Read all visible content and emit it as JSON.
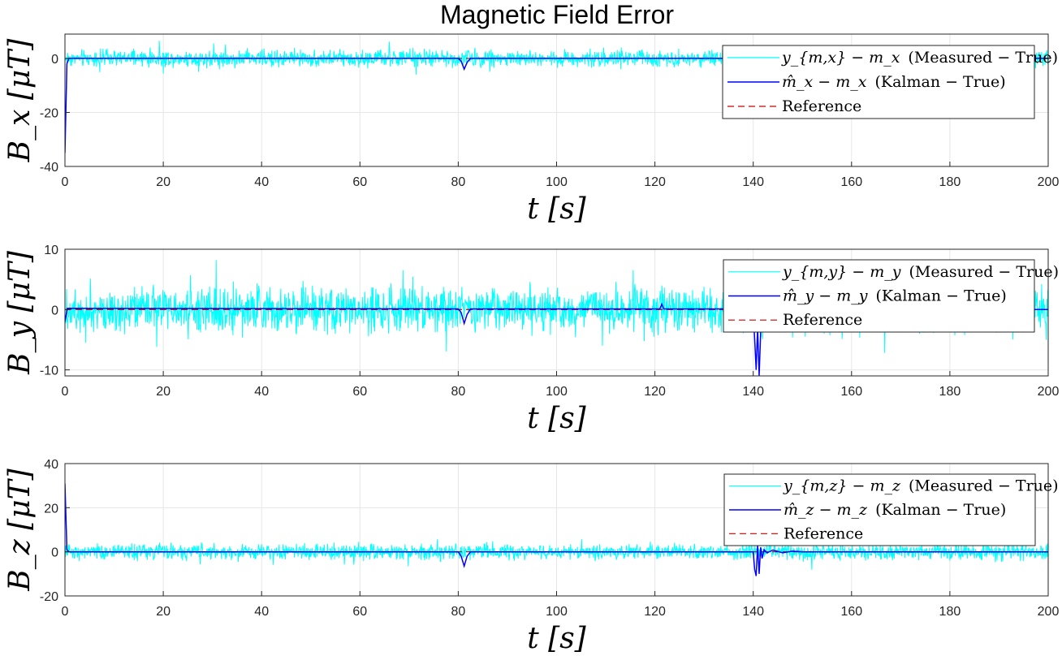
{
  "figure": {
    "title": "Magnetic Field Error"
  },
  "colors": {
    "measured": "#00ffff",
    "kalman": "#0000ff",
    "reference": "#cc0000",
    "grid": "#e6e6e6",
    "axis": "#262626"
  },
  "chart_data": [
    {
      "type": "line",
      "title": "Magnetic Field Error",
      "xlabel": "t [s]",
      "ylabel": "B_x [μT]",
      "xlim": [
        0,
        200
      ],
      "ylim": [
        -40,
        9
      ],
      "xticks": [
        "0",
        "20",
        "40",
        "60",
        "80",
        "100",
        "120",
        "140",
        "160",
        "180",
        "200"
      ],
      "yticks": [
        "-40",
        "-20",
        "0"
      ],
      "ytick_values": [
        -40,
        -20,
        0
      ],
      "grid": true,
      "legend_position": "top-right",
      "series": [
        {
          "name": "y_{m,x} − m_x (Measured − True)",
          "legend_math": "y_{m,x} − m_x",
          "legend_text": "(Measured − True)",
          "noise_amplitude": 4.5,
          "mean": 0
        },
        {
          "name": "m̂_x − m_x (Kalman − True)",
          "legend_math": "m̂_x − m_x",
          "legend_text": "(Kalman − True)",
          "points": [
            [
              0,
              -35
            ],
            [
              0.4,
              -2
            ],
            [
              0.8,
              0
            ],
            [
              80,
              0
            ],
            [
              80.6,
              -1
            ],
            [
              81.2,
              -4
            ],
            [
              81.8,
              -1.5
            ],
            [
              82.5,
              0
            ],
            [
              200,
              0
            ]
          ]
        },
        {
          "name": "Reference",
          "legend_text": "Reference",
          "points": [
            [
              0,
              0
            ],
            [
              200,
              0
            ]
          ]
        }
      ]
    },
    {
      "type": "line",
      "xlabel": "t [s]",
      "ylabel": "B_y [μT]",
      "xlim": [
        0,
        200
      ],
      "ylim": [
        -11,
        10
      ],
      "xticks": [
        "0",
        "20",
        "40",
        "60",
        "80",
        "100",
        "120",
        "140",
        "160",
        "180",
        "200"
      ],
      "yticks": [
        "-10",
        "0",
        "10"
      ],
      "ytick_values": [
        -10,
        0,
        10
      ],
      "grid": true,
      "legend_position": "top-right",
      "series": [
        {
          "name": "y_{m,y} − m_y (Measured − True)",
          "legend_math": "y_{m,y} − m_y",
          "legend_text": "(Measured − True)",
          "noise_amplitude": 5.5,
          "mean": 0
        },
        {
          "name": "m̂_y − m_y (Kalman − True)",
          "legend_math": "m̂_y − m_y",
          "legend_text": "(Kalman − True)",
          "points": [
            [
              0,
              -2
            ],
            [
              0.5,
              0.2
            ],
            [
              80,
              0.1
            ],
            [
              80.6,
              -0.5
            ],
            [
              81.2,
              -2.3
            ],
            [
              81.8,
              -0.8
            ],
            [
              82.5,
              0.1
            ],
            [
              121,
              0.1
            ],
            [
              121.4,
              0.9
            ],
            [
              121.8,
              0.1
            ],
            [
              140,
              0.1
            ],
            [
              140.3,
              -5
            ],
            [
              140.6,
              -10
            ],
            [
              140.9,
              -3
            ],
            [
              141.2,
              -11
            ],
            [
              141.5,
              -4
            ],
            [
              141.8,
              0
            ],
            [
              200,
              0
            ]
          ]
        },
        {
          "name": "Reference",
          "legend_text": "Reference",
          "points": [
            [
              0,
              0
            ],
            [
              200,
              0
            ]
          ]
        }
      ]
    },
    {
      "type": "line",
      "xlabel": "t [s]",
      "ylabel": "B_z [μT]",
      "xlim": [
        0,
        200
      ],
      "ylim": [
        -20,
        40
      ],
      "xticks": [
        "0",
        "20",
        "40",
        "60",
        "80",
        "100",
        "120",
        "140",
        "160",
        "180",
        "200"
      ],
      "yticks": [
        "-20",
        "0",
        "20",
        "40"
      ],
      "ytick_values": [
        -20,
        0,
        20,
        40
      ],
      "grid": true,
      "legend_position": "top-right",
      "series": [
        {
          "name": "y_{m,z} − m_z (Measured − True)",
          "legend_math": "y_{m,z} − m_z",
          "legend_text": "(Measured − True)",
          "noise_amplitude": 5,
          "mean": 0
        },
        {
          "name": "m̂_z − m_z (Kalman − True)",
          "legend_math": "m̂_z − m_z",
          "legend_text": "(Kalman − True)",
          "points": [
            [
              0,
              31
            ],
            [
              0.4,
              1
            ],
            [
              0.8,
              0
            ],
            [
              80,
              0
            ],
            [
              80.6,
              -2
            ],
            [
              81.2,
              -6.5
            ],
            [
              81.8,
              -2
            ],
            [
              82.5,
              0
            ],
            [
              140,
              0
            ],
            [
              140.3,
              -8
            ],
            [
              140.6,
              -11
            ],
            [
              140.9,
              3
            ],
            [
              141.2,
              -10
            ],
            [
              141.5,
              2
            ],
            [
              141.8,
              -3
            ],
            [
              142.2,
              1
            ],
            [
              142.8,
              -0.5
            ],
            [
              144,
              0.8
            ],
            [
              146,
              -0.4
            ],
            [
              148,
              0.3
            ],
            [
              150,
              0
            ],
            [
              200,
              0
            ]
          ]
        },
        {
          "name": "Reference",
          "legend_text": "Reference",
          "points": [
            [
              0,
              0
            ],
            [
              200,
              0
            ]
          ]
        }
      ]
    }
  ]
}
